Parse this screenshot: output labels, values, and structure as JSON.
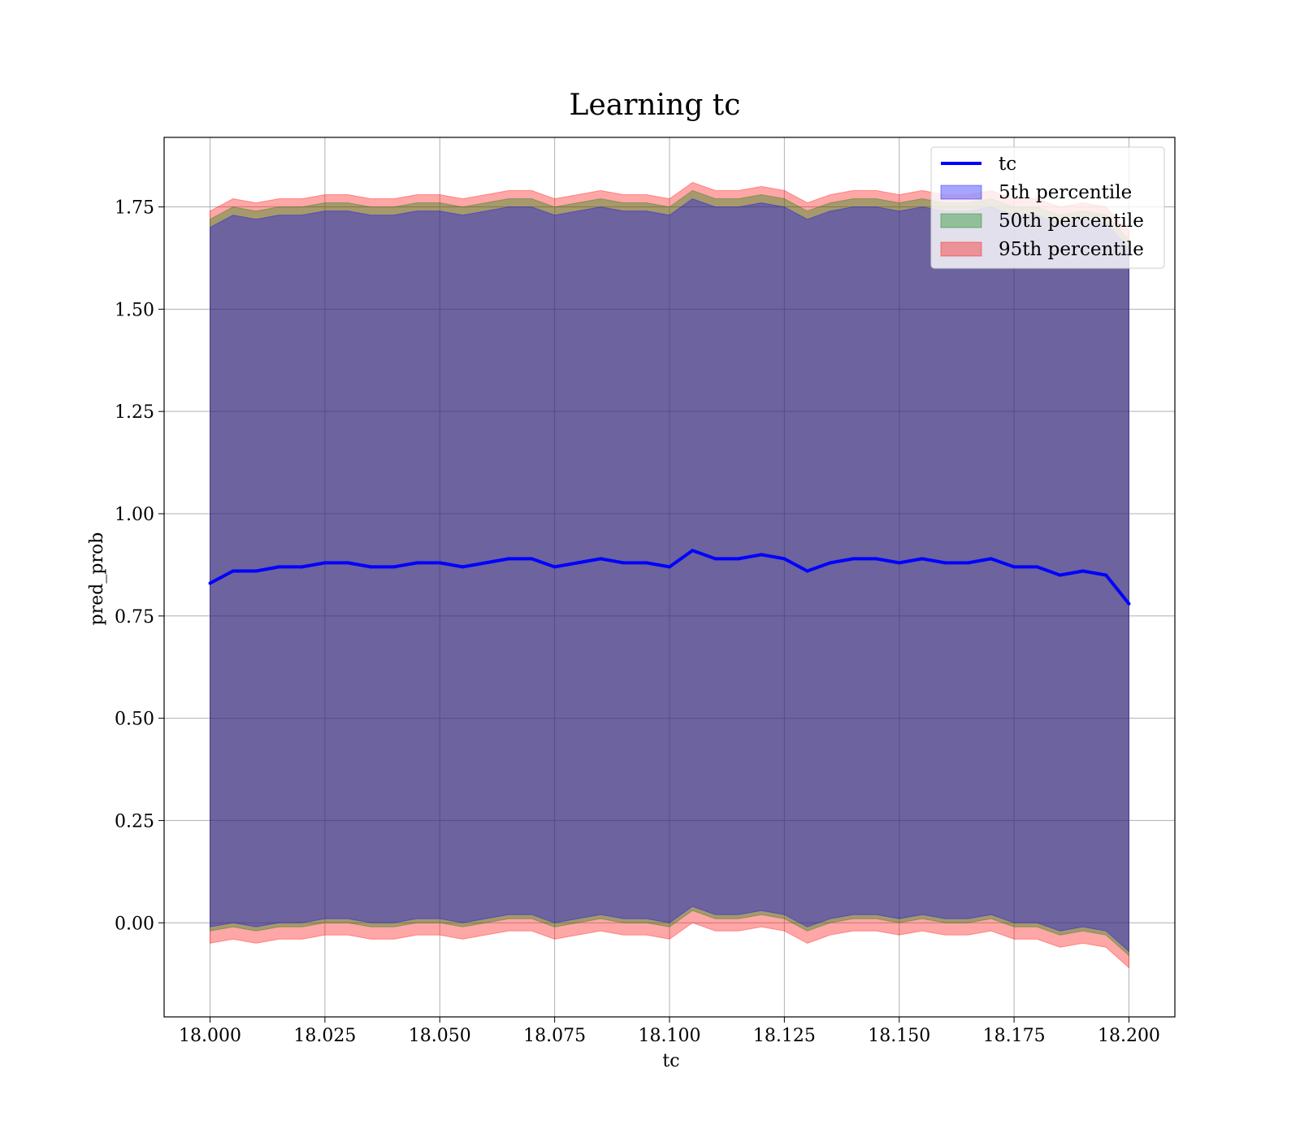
{
  "chart_data": {
    "type": "area",
    "title": "Learning tc",
    "xlabel": "tc",
    "ylabel": "pred_prob",
    "xlim": [
      17.99,
      18.21
    ],
    "ylim": [
      -0.23,
      1.92
    ],
    "xticks": [
      18.0,
      18.025,
      18.05,
      18.075,
      18.1,
      18.125,
      18.15,
      18.175,
      18.2
    ],
    "xtick_labels": [
      "18.000",
      "18.025",
      "18.050",
      "18.075",
      "18.100",
      "18.125",
      "18.150",
      "18.175",
      "18.200"
    ],
    "yticks": [
      0.0,
      0.25,
      0.5,
      0.75,
      1.0,
      1.25,
      1.5,
      1.75
    ],
    "ytick_labels": [
      "0.00",
      "0.25",
      "0.50",
      "0.75",
      "1.00",
      "1.25",
      "1.50",
      "1.75"
    ],
    "grid": true,
    "legend_position": "top-right",
    "legend": [
      "tc",
      "5th percentile",
      "50th percentile",
      "95th percentile"
    ],
    "x": [
      18.0,
      18.005,
      18.01,
      18.015,
      18.02,
      18.025,
      18.03,
      18.035,
      18.04,
      18.045,
      18.05,
      18.055,
      18.06,
      18.065,
      18.07,
      18.075,
      18.08,
      18.085,
      18.09,
      18.095,
      18.1,
      18.105,
      18.11,
      18.115,
      18.12,
      18.125,
      18.13,
      18.135,
      18.14,
      18.145,
      18.15,
      18.155,
      18.16,
      18.165,
      18.17,
      18.175,
      18.18,
      18.185,
      18.19,
      18.195,
      18.2
    ],
    "series": [
      {
        "name": "tc",
        "type": "line",
        "color": "#0000ff",
        "values": [
          0.83,
          0.86,
          0.86,
          0.87,
          0.87,
          0.88,
          0.88,
          0.87,
          0.87,
          0.88,
          0.88,
          0.87,
          0.88,
          0.89,
          0.89,
          0.87,
          0.88,
          0.89,
          0.88,
          0.88,
          0.87,
          0.91,
          0.89,
          0.89,
          0.9,
          0.89,
          0.86,
          0.88,
          0.89,
          0.89,
          0.88,
          0.89,
          0.88,
          0.88,
          0.89,
          0.87,
          0.87,
          0.85,
          0.86,
          0.85,
          0.78
        ]
      },
      {
        "name": "5th percentile",
        "type": "band",
        "color": "#0000ff",
        "lower": [
          -0.01,
          0.0,
          -0.01,
          0.0,
          0.0,
          0.01,
          0.01,
          0.0,
          0.0,
          0.01,
          0.01,
          0.0,
          0.01,
          0.02,
          0.02,
          0.0,
          0.01,
          0.02,
          0.01,
          0.01,
          0.0,
          0.04,
          0.02,
          0.02,
          0.03,
          0.02,
          -0.01,
          0.01,
          0.02,
          0.02,
          0.01,
          0.02,
          0.01,
          0.01,
          0.02,
          0.0,
          0.0,
          -0.02,
          -0.01,
          -0.02,
          -0.07
        ],
        "upper": [
          1.7,
          1.73,
          1.72,
          1.73,
          1.73,
          1.74,
          1.74,
          1.73,
          1.73,
          1.74,
          1.74,
          1.73,
          1.74,
          1.75,
          1.75,
          1.73,
          1.74,
          1.75,
          1.74,
          1.74,
          1.73,
          1.77,
          1.75,
          1.75,
          1.76,
          1.75,
          1.72,
          1.74,
          1.75,
          1.75,
          1.74,
          1.75,
          1.74,
          1.74,
          1.75,
          1.73,
          1.73,
          1.71,
          1.72,
          1.71,
          1.65
        ]
      },
      {
        "name": "50th percentile",
        "type": "band",
        "color": "#008000",
        "lower": [
          -0.02,
          -0.01,
          -0.02,
          -0.01,
          -0.01,
          0.0,
          0.0,
          -0.01,
          -0.01,
          0.0,
          0.0,
          -0.01,
          0.0,
          0.01,
          0.01,
          -0.01,
          0.0,
          0.01,
          0.0,
          0.0,
          -0.01,
          0.03,
          0.01,
          0.01,
          0.02,
          0.01,
          -0.02,
          0.0,
          0.01,
          0.01,
          0.0,
          0.01,
          0.0,
          0.0,
          0.01,
          -0.01,
          -0.01,
          -0.03,
          -0.02,
          -0.03,
          -0.08
        ],
        "upper": [
          1.72,
          1.75,
          1.74,
          1.75,
          1.75,
          1.76,
          1.76,
          1.75,
          1.75,
          1.76,
          1.76,
          1.75,
          1.76,
          1.77,
          1.77,
          1.75,
          1.76,
          1.77,
          1.76,
          1.76,
          1.75,
          1.79,
          1.77,
          1.77,
          1.78,
          1.77,
          1.74,
          1.76,
          1.77,
          1.77,
          1.76,
          1.77,
          1.76,
          1.76,
          1.77,
          1.75,
          1.75,
          1.73,
          1.74,
          1.73,
          1.67
        ]
      },
      {
        "name": "95th percentile",
        "type": "band",
        "color": "#ff0000",
        "lower": [
          -0.05,
          -0.04,
          -0.05,
          -0.04,
          -0.04,
          -0.03,
          -0.03,
          -0.04,
          -0.04,
          -0.03,
          -0.03,
          -0.04,
          -0.03,
          -0.02,
          -0.02,
          -0.04,
          -0.03,
          -0.02,
          -0.03,
          -0.03,
          -0.04,
          0.0,
          -0.02,
          -0.02,
          -0.01,
          -0.02,
          -0.05,
          -0.03,
          -0.02,
          -0.02,
          -0.03,
          -0.02,
          -0.03,
          -0.03,
          -0.02,
          -0.04,
          -0.04,
          -0.06,
          -0.05,
          -0.06,
          -0.11
        ],
        "upper": [
          1.74,
          1.77,
          1.76,
          1.77,
          1.77,
          1.78,
          1.78,
          1.77,
          1.77,
          1.78,
          1.78,
          1.77,
          1.78,
          1.79,
          1.79,
          1.77,
          1.78,
          1.79,
          1.78,
          1.78,
          1.77,
          1.81,
          1.79,
          1.79,
          1.8,
          1.79,
          1.76,
          1.78,
          1.79,
          1.79,
          1.78,
          1.79,
          1.78,
          1.78,
          1.79,
          1.77,
          1.77,
          1.75,
          1.76,
          1.75,
          1.69
        ]
      }
    ]
  }
}
